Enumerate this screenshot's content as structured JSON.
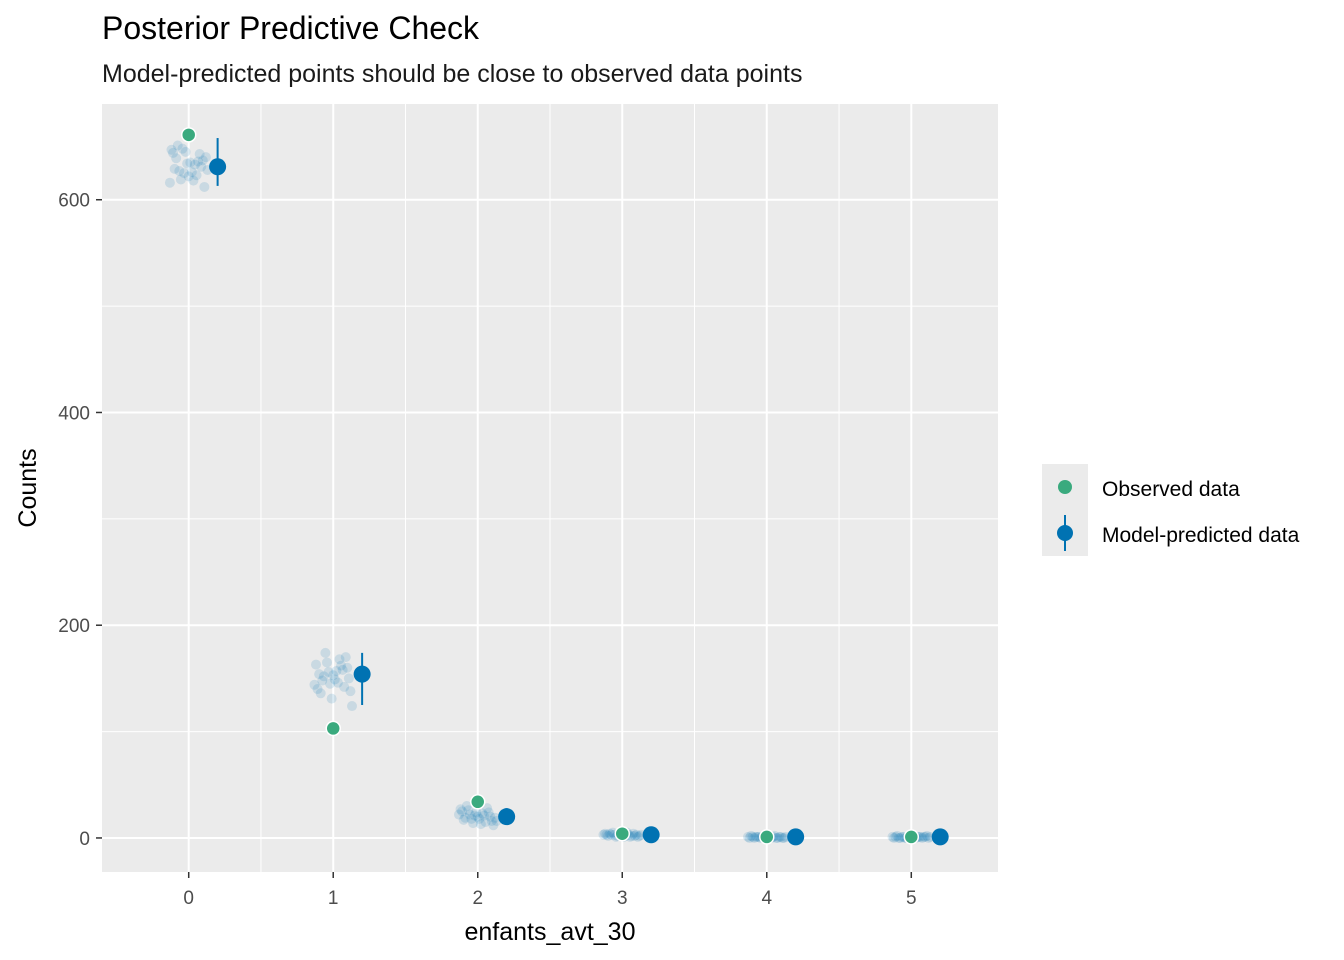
{
  "chart_data": {
    "type": "scatter",
    "title": "Posterior Predictive Check",
    "subtitle": "Model-predicted points should be close to observed data points",
    "xlabel": "enfants_avt_30",
    "ylabel": "Counts",
    "xlim": [
      -0.6,
      5.6
    ],
    "ylim": [
      -32,
      690
    ],
    "x_ticks": [
      0,
      1,
      2,
      3,
      4,
      5
    ],
    "y_ticks": [
      0,
      200,
      400,
      600
    ],
    "grid": true,
    "legend_position": "right",
    "colors": {
      "observed": "#3aaa7e",
      "predicted": "#0072b2",
      "panel": "#ebebeb",
      "grid": "#ffffff"
    },
    "series": [
      {
        "name": "Observed data",
        "x": [
          0,
          1,
          2,
          3,
          4,
          5
        ],
        "y": [
          661,
          103,
          34,
          4,
          1,
          1
        ]
      },
      {
        "name": "Model-predicted data",
        "x": [
          0,
          1,
          2,
          3,
          4,
          5
        ],
        "y": [
          631,
          154,
          20,
          3,
          1,
          1
        ],
        "lower": [
          613,
          125,
          13,
          1,
          0,
          0
        ],
        "upper": [
          658,
          174,
          28,
          5,
          2,
          2
        ]
      }
    ],
    "draws": [
      [
        616,
        622,
        628,
        634,
        640,
        645,
        612,
        625,
        637,
        648,
        631,
        619,
        643,
        627,
        636,
        651,
        623,
        639,
        633,
        629,
        618,
        644,
        626,
        647,
        635
      ],
      [
        131,
        138,
        145,
        150,
        156,
        160,
        165,
        170,
        174,
        142,
        152,
        158,
        148,
        162,
        136,
        168,
        154,
        146,
        140,
        157,
        163,
        149,
        144,
        153,
        124
      ],
      [
        12,
        14,
        16,
        18,
        20,
        22,
        24,
        26,
        28,
        30,
        15,
        19,
        21,
        17,
        23,
        25,
        13,
        27,
        18,
        22,
        20,
        16,
        24,
        19,
        21
      ],
      [
        1,
        2,
        3,
        4,
        5,
        2,
        3,
        1,
        4,
        3,
        2,
        5,
        3,
        2,
        4,
        1,
        3,
        2,
        3,
        4,
        2,
        3,
        1,
        2,
        3
      ],
      [
        0,
        1,
        0,
        1,
        2,
        0,
        1,
        1,
        0,
        2,
        1,
        0,
        1,
        1,
        0,
        1,
        2,
        0,
        1,
        0,
        1,
        1,
        0,
        1,
        1
      ],
      [
        0,
        1,
        0,
        1,
        2,
        0,
        1,
        1,
        0,
        2,
        1,
        0,
        1,
        1,
        0,
        1,
        2,
        0,
        1,
        0,
        1,
        1,
        0,
        1,
        1
      ]
    ]
  }
}
